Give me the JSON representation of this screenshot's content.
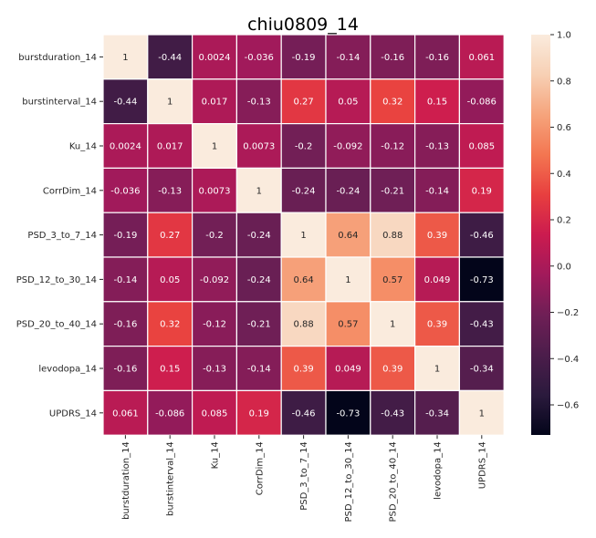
{
  "chart_data": {
    "type": "heatmap",
    "title": "chiu0809_14",
    "xlabel": "",
    "ylabel": "",
    "rows": [
      "burstduration_14",
      "burstinterval_14",
      "Ku_14",
      "CorrDim_14",
      "PSD_3_to_7_14",
      "PSD_12_to_30_14",
      "PSD_20_to_40_14",
      "levodopa_14",
      "UPDRS_14"
    ],
    "columns": [
      "burstduration_14",
      "burstinterval_14",
      "Ku_14",
      "CorrDim_14",
      "PSD_3_to_7_14",
      "PSD_12_to_30_14",
      "PSD_20_to_40_14",
      "levodopa_14",
      "UPDRS_14"
    ],
    "values": [
      [
        1,
        -0.44,
        0.0024,
        -0.036,
        -0.19,
        -0.14,
        -0.16,
        -0.16,
        0.061
      ],
      [
        -0.44,
        1,
        0.017,
        -0.13,
        0.27,
        0.05,
        0.32,
        0.15,
        -0.086
      ],
      [
        0.0024,
        0.017,
        1,
        0.0073,
        -0.2,
        -0.092,
        -0.12,
        -0.13,
        0.085
      ],
      [
        -0.036,
        -0.13,
        0.0073,
        1,
        -0.24,
        -0.24,
        -0.21,
        -0.14,
        0.19
      ],
      [
        -0.19,
        0.27,
        -0.2,
        -0.24,
        1,
        0.64,
        0.88,
        0.39,
        -0.46
      ],
      [
        -0.14,
        0.05,
        -0.092,
        -0.24,
        0.64,
        1,
        0.57,
        0.049,
        -0.73
      ],
      [
        -0.16,
        0.32,
        -0.12,
        -0.21,
        0.88,
        0.57,
        1,
        0.39,
        -0.43
      ],
      [
        -0.16,
        0.15,
        -0.13,
        -0.14,
        0.39,
        0.049,
        0.39,
        1,
        -0.34
      ],
      [
        0.061,
        -0.086,
        0.085,
        0.19,
        -0.46,
        -0.73,
        -0.43,
        -0.34,
        1
      ]
    ],
    "cell_labels": [
      [
        "1",
        "-0.44",
        "0.0024",
        "-0.036",
        "-0.19",
        "-0.14",
        "-0.16",
        "-0.16",
        "0.061"
      ],
      [
        "-0.44",
        "1",
        "0.017",
        "-0.13",
        "0.27",
        "0.05",
        "0.32",
        "0.15",
        "-0.086"
      ],
      [
        "0.0024",
        "0.017",
        "1",
        "0.0073",
        "-0.2",
        "-0.092",
        "-0.12",
        "-0.13",
        "0.085"
      ],
      [
        "-0.036",
        "-0.13",
        "0.0073",
        "1",
        "-0.24",
        "-0.24",
        "-0.21",
        "-0.14",
        "0.19"
      ],
      [
        "-0.19",
        "0.27",
        "-0.2",
        "-0.24",
        "1",
        "0.64",
        "0.88",
        "0.39",
        "-0.46"
      ],
      [
        "-0.14",
        "0.05",
        "-0.092",
        "-0.24",
        "0.64",
        "1",
        "0.57",
        "0.049",
        "-0.73"
      ],
      [
        "-0.16",
        "0.32",
        "-0.12",
        "-0.21",
        "0.88",
        "0.57",
        "1",
        "0.39",
        "-0.43"
      ],
      [
        "-0.16",
        "0.15",
        "-0.13",
        "-0.14",
        "0.39",
        "0.049",
        "0.39",
        "1",
        "-0.34"
      ],
      [
        "0.061",
        "-0.086",
        "0.085",
        "0.19",
        "-0.46",
        "-0.73",
        "-0.43",
        "-0.34",
        "1"
      ]
    ],
    "colorbar": {
      "range": [
        -0.73,
        1.0
      ],
      "ticks": [
        1.0,
        0.8,
        0.6,
        0.4,
        0.2,
        0.0,
        -0.2,
        -0.4,
        -0.6
      ],
      "tick_labels": [
        "1.0",
        "0.8",
        "0.6",
        "0.4",
        "0.2",
        "0.0",
        "−0.2",
        "−0.4",
        "−0.6"
      ],
      "colormap": "rocket",
      "position": "right"
    },
    "colormap_stops": [
      "#03051a",
      "#2b1a3d",
      "#4c1d4b",
      "#6f1f56",
      "#a11a5b",
      "#cb1b4f",
      "#e83f3f",
      "#f37651",
      "#f6a47c",
      "#f7d0b4",
      "#faebdd"
    ],
    "cell_border_color": "#ffffff"
  }
}
